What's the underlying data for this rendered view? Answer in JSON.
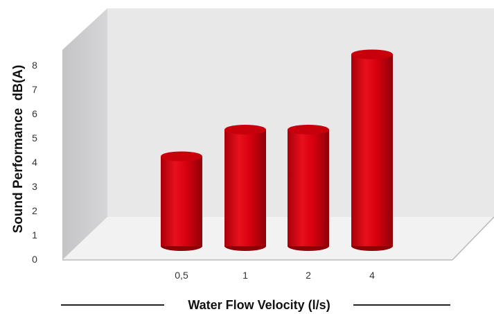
{
  "chart_data": {
    "type": "bar",
    "style": "3d-cylinder",
    "categories": [
      "0,5",
      "1",
      "2",
      "4"
    ],
    "values": [
      3.7,
      4.8,
      4.8,
      7.9
    ],
    "ylabel": "Sound Performance  dB(A)",
    "xlabel": "Water Flow Velocity (l/s)",
    "ylim": [
      0,
      8
    ],
    "yticks": [
      "0",
      "1",
      "2",
      "3",
      "4",
      "5",
      "6",
      "7",
      "8"
    ],
    "grid": false,
    "legend": "none",
    "colors": {
      "bar": "#d9000f",
      "bar_dark": "#8e0008",
      "bar_top": "#c8000c",
      "back_wall": "#e8e8e9",
      "side_wall": "#c9c9cb",
      "floor": "#f2f2f3"
    }
  }
}
